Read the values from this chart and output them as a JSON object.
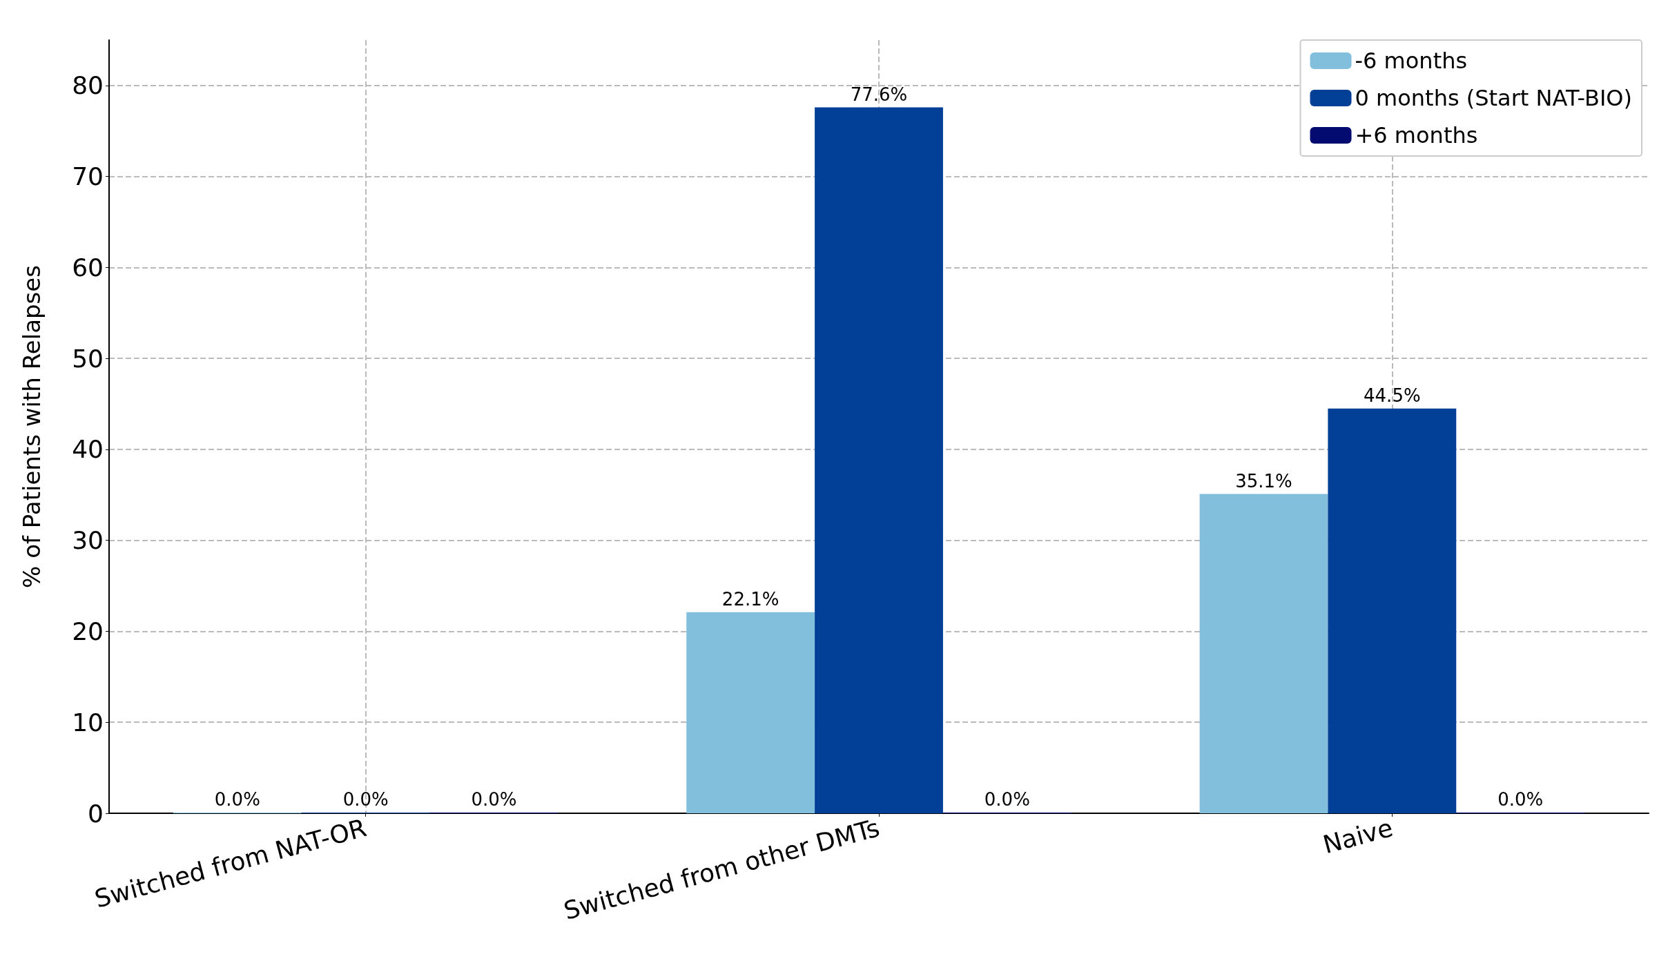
{
  "chart_data": {
    "type": "bar",
    "ylabel": "% of Patients with Relapses",
    "categories": [
      "Switched from NAT-OR",
      "Switched from other DMTs",
      "Naive"
    ],
    "series": [
      {
        "name": "-6 months",
        "color": "#82bfdc",
        "values": [
          0,
          22.1,
          35.1
        ],
        "value_labels": [
          "0.0%",
          "22.1%",
          "35.1%"
        ]
      },
      {
        "name": "0 months (Start NAT-BIO)",
        "color": "#023f97",
        "values": [
          0,
          77.6,
          44.5
        ],
        "value_labels": [
          "0.0%",
          "77.6%",
          "44.5%"
        ]
      },
      {
        "name": "+6 months",
        "color": "#030a70",
        "values": [
          0,
          0,
          0
        ],
        "value_labels": [
          "0.0%",
          "0.0%",
          "0.0%"
        ]
      }
    ],
    "ylim": [
      0,
      85
    ],
    "yticks": [
      0,
      10,
      20,
      30,
      40,
      50,
      60,
      70,
      80
    ],
    "grid": true,
    "legend": "top right"
  }
}
